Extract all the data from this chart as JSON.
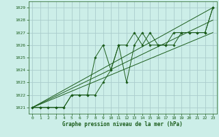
{
  "title": "Graphe pression niveau de la mer (hPa)",
  "background_color": "#cceee8",
  "grid_color": "#aacccc",
  "line_color": "#1a5c1a",
  "xlim": [
    -0.5,
    23.5
  ],
  "ylim": [
    1020.5,
    1029.5
  ],
  "yticks": [
    1021,
    1022,
    1023,
    1024,
    1025,
    1026,
    1027,
    1028,
    1029
  ],
  "xticks": [
    0,
    1,
    2,
    3,
    4,
    5,
    6,
    7,
    8,
    9,
    10,
    11,
    12,
    13,
    14,
    15,
    16,
    17,
    18,
    19,
    20,
    21,
    22,
    23
  ],
  "series1": {
    "x": [
      0,
      1,
      2,
      3,
      4,
      5,
      6,
      7,
      8,
      9,
      10,
      11,
      12,
      13,
      14,
      15,
      16,
      17,
      18,
      19,
      20,
      21,
      22,
      23
    ],
    "y": [
      1021,
      1021,
      1021,
      1021,
      1021,
      1022,
      1022,
      1022,
      1025,
      1026,
      1024,
      1026,
      1026,
      1027,
      1026,
      1027,
      1026,
      1026,
      1026,
      1027,
      1027,
      1027,
      1027,
      1029
    ]
  },
  "series2": {
    "x": [
      0,
      1,
      2,
      3,
      4,
      5,
      6,
      7,
      8,
      9,
      10,
      11,
      12,
      13,
      14,
      15,
      16,
      17,
      18,
      19,
      20,
      21,
      22,
      23
    ],
    "y": [
      1021,
      1021,
      1021,
      1021,
      1021,
      1022,
      1022,
      1022,
      1022,
      1023,
      1024,
      1026,
      1023,
      1026,
      1027,
      1026,
      1026,
      1026,
      1027,
      1027,
      1027,
      1027,
      1027,
      1029
    ]
  },
  "trend1": {
    "x": [
      0,
      23
    ],
    "y": [
      1021,
      1029
    ]
  },
  "trend2": {
    "x": [
      0,
      23
    ],
    "y": [
      1021,
      1027
    ]
  },
  "trend3": {
    "x": [
      0,
      23
    ],
    "y": [
      1021,
      1028
    ]
  }
}
